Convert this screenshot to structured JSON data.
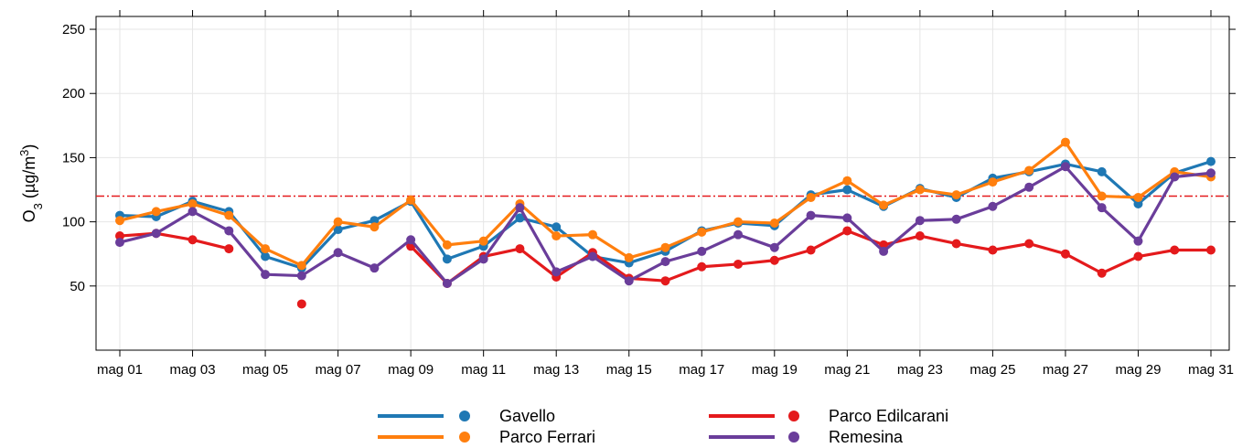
{
  "chart_data": {
    "type": "line",
    "ylabel": {
      "main": "O",
      "sub": "3",
      "unit_open": " (µg/m",
      "sup": "3",
      "unit_close": ")"
    },
    "ylim": [
      0,
      260
    ],
    "yticks": [
      50,
      100,
      150,
      200,
      250
    ],
    "grid": true,
    "threshold": {
      "value": 120,
      "color": "#e41a1c",
      "style": "dash-dot"
    },
    "x": [
      "mag 01",
      "mag 02",
      "mag 03",
      "mag 04",
      "mag 05",
      "mag 06",
      "mag 07",
      "mag 08",
      "mag 09",
      "mag 10",
      "mag 11",
      "mag 12",
      "mag 13",
      "mag 14",
      "mag 15",
      "mag 16",
      "mag 17",
      "mag 18",
      "mag 19",
      "mag 20",
      "mag 21",
      "mag 22",
      "mag 23",
      "mag 24",
      "mag 25",
      "mag 26",
      "mag 27",
      "mag 28",
      "mag 29",
      "mag 30",
      "mag 31"
    ],
    "xtick_labels": [
      "mag 01",
      "mag 03",
      "mag 05",
      "mag 07",
      "mag 09",
      "mag 11",
      "mag 13",
      "mag 15",
      "mag 17",
      "mag 19",
      "mag 21",
      "mag 23",
      "mag 25",
      "mag 27",
      "mag 29",
      "mag 31"
    ],
    "legend_position": "bottom",
    "series": [
      {
        "name": "Gavello",
        "color": "#1f78b4",
        "values": [
          105,
          104,
          116,
          108,
          73,
          64,
          94,
          101,
          116,
          71,
          81,
          103,
          96,
          73,
          68,
          77,
          93,
          99,
          97,
          121,
          125,
          112,
          126,
          119,
          134,
          139,
          145,
          139,
          114,
          138,
          147
        ]
      },
      {
        "name": "Parco Edilcarani",
        "color": "#e41a1c",
        "values": [
          89,
          91,
          86,
          79,
          null,
          36,
          null,
          null,
          81,
          52,
          73,
          79,
          57,
          76,
          56,
          54,
          65,
          67,
          70,
          78,
          93,
          82,
          89,
          83,
          78,
          83,
          75,
          60,
          73,
          78,
          78
        ]
      },
      {
        "name": "Parco Ferrari",
        "color": "#ff7f0e",
        "values": [
          101,
          108,
          114,
          105,
          79,
          66,
          100,
          96,
          117,
          82,
          85,
          114,
          89,
          90,
          72,
          80,
          92,
          100,
          99,
          119,
          132,
          113,
          125,
          121,
          131,
          140,
          162,
          120,
          119,
          139,
          135
        ]
      },
      {
        "name": "Remesina",
        "color": "#6a3d9a",
        "values": [
          84,
          91,
          108,
          93,
          59,
          58,
          76,
          64,
          86,
          52,
          71,
          111,
          61,
          73,
          54,
          69,
          77,
          90,
          80,
          105,
          103,
          77,
          101,
          102,
          112,
          127,
          143,
          111,
          85,
          135,
          138
        ]
      }
    ]
  }
}
